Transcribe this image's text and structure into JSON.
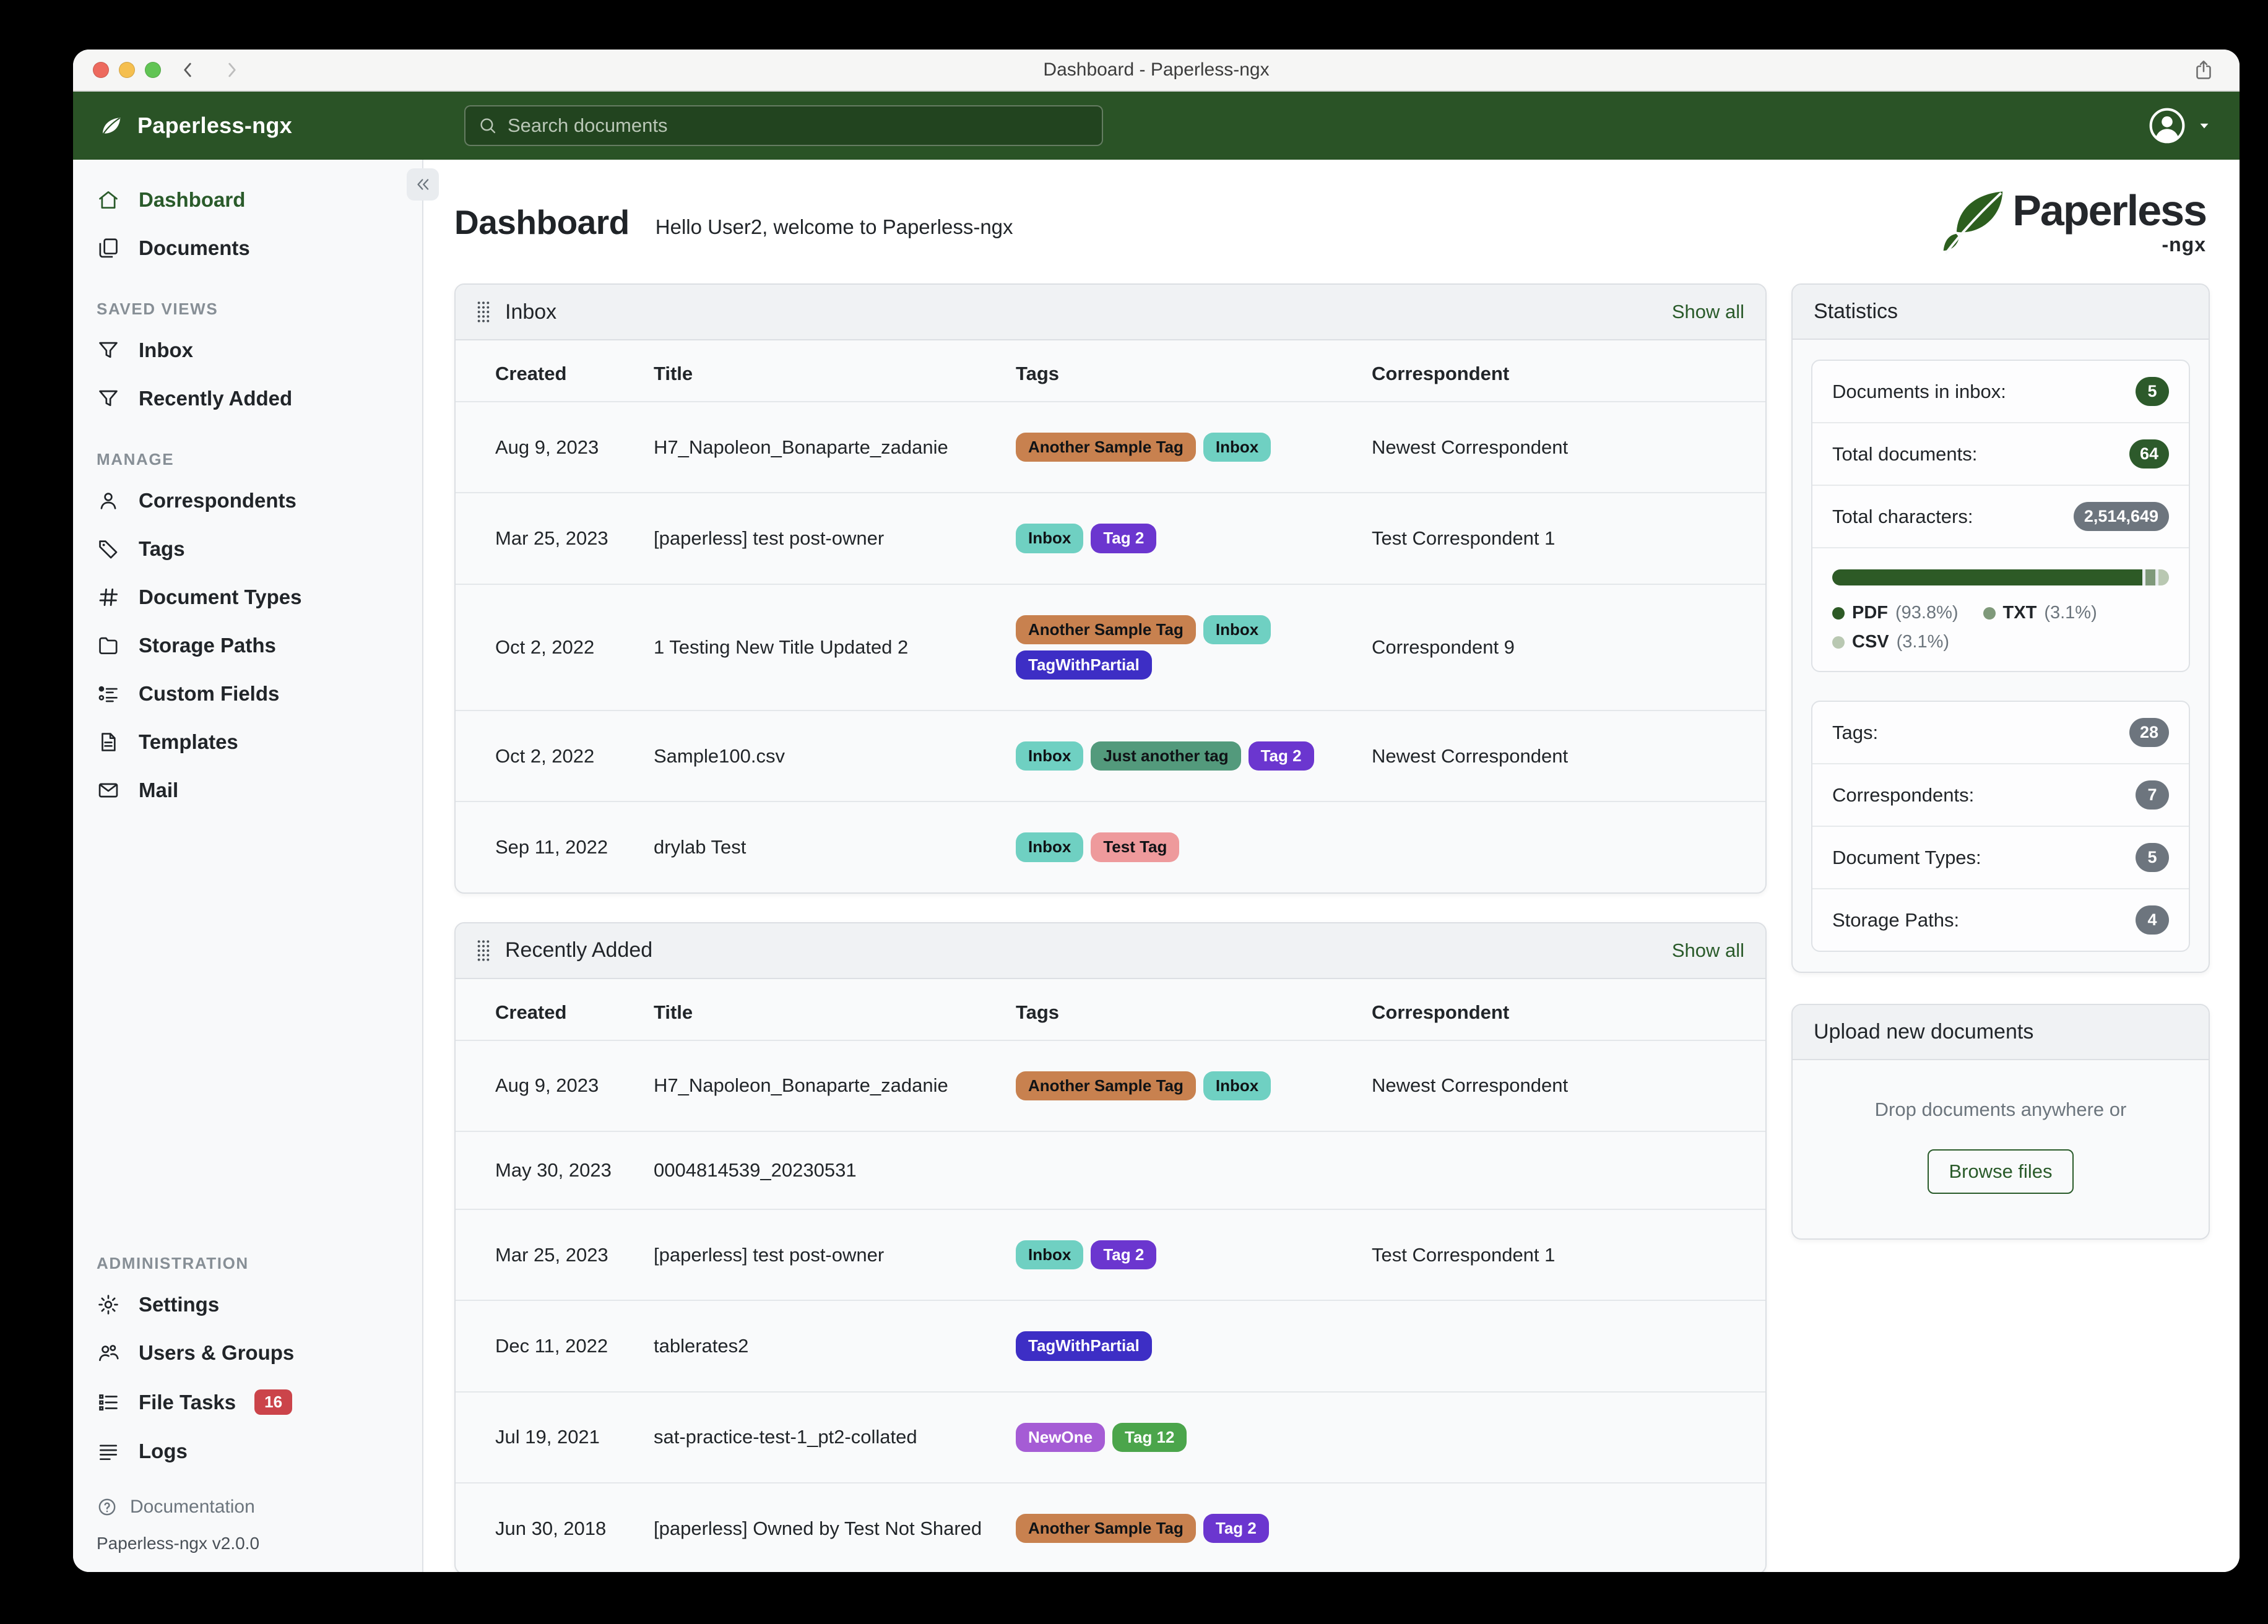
{
  "window": {
    "title": "Dashboard - Paperless-ngx"
  },
  "header": {
    "brand": "Paperless-ngx",
    "search_placeholder": "Search documents"
  },
  "logo": {
    "wordmark": "Paperless",
    "suffix": "-ngx"
  },
  "sidebar": {
    "sections": [
      {
        "label": "",
        "area": "top",
        "items": [
          {
            "icon": "home",
            "label": "Dashboard",
            "active": true
          },
          {
            "icon": "documents",
            "label": "Documents"
          }
        ]
      },
      {
        "label": "SAVED VIEWS",
        "area": "top",
        "items": [
          {
            "icon": "funnel",
            "label": "Inbox"
          },
          {
            "icon": "funnel",
            "label": "Recently Added"
          }
        ]
      },
      {
        "label": "MANAGE",
        "area": "top",
        "items": [
          {
            "icon": "person",
            "label": "Correspondents"
          },
          {
            "icon": "tag",
            "label": "Tags"
          },
          {
            "icon": "hash",
            "label": "Document Types"
          },
          {
            "icon": "folder",
            "label": "Storage Paths"
          },
          {
            "icon": "fields",
            "label": "Custom Fields"
          },
          {
            "icon": "file",
            "label": "Templates"
          },
          {
            "icon": "envelope",
            "label": "Mail"
          }
        ]
      },
      {
        "label": "ADMINISTRATION",
        "area": "bottom",
        "items": [
          {
            "icon": "gear",
            "label": "Settings"
          },
          {
            "icon": "users",
            "label": "Users & Groups"
          },
          {
            "icon": "tasks",
            "label": "File Tasks",
            "badge": "16"
          },
          {
            "icon": "logs",
            "label": "Logs"
          }
        ]
      }
    ],
    "footer": {
      "docs_label": "Documentation",
      "version": "Paperless-ngx v2.0.0"
    }
  },
  "main": {
    "title": "Dashboard",
    "subtitle": "Hello User2, welcome to Paperless-ngx"
  },
  "tag_colors": {
    "Inbox": {
      "bg": "#6fd0c2",
      "fg": "#101316"
    },
    "Another Sample Tag": {
      "bg": "#c8814f",
      "fg": "#101316"
    },
    "Tag 2": {
      "bg": "#6b36cf",
      "fg": "#ffffff"
    },
    "TagWithPartial": {
      "bg": "#3d2ec5",
      "fg": "#ffffff"
    },
    "Just another tag": {
      "bg": "#539a7c",
      "fg": "#101316"
    },
    "Test Tag": {
      "bg": "#ee9a9c",
      "fg": "#101316"
    },
    "NewOne": {
      "bg": "#a55cd5",
      "fg": "#ffffff"
    },
    "Tag 12": {
      "bg": "#4ba54b",
      "fg": "#ffffff"
    }
  },
  "cards": [
    {
      "id": "inbox",
      "title": "Inbox",
      "show_all_label": "Show all",
      "columns": [
        "Created",
        "Title",
        "Tags",
        "Correspondent"
      ],
      "rows": [
        {
          "created": "Aug 9, 2023",
          "title": "H7_Napoleon_Bonaparte_zadanie",
          "tags": [
            "Another Sample Tag",
            "Inbox"
          ],
          "correspondent": "Newest Correspondent"
        },
        {
          "created": "Mar 25, 2023",
          "title": "[paperless] test post-owner",
          "tags": [
            "Inbox",
            "Tag 2"
          ],
          "correspondent": "Test Correspondent 1"
        },
        {
          "created": "Oct 2, 2022",
          "title": "1 Testing New Title Updated 2",
          "tags": [
            "Another Sample Tag",
            "Inbox",
            "TagWithPartial"
          ],
          "correspondent": "Correspondent 9"
        },
        {
          "created": "Oct 2, 2022",
          "title": "Sample100.csv",
          "tags": [
            "Inbox",
            "Just another tag",
            "Tag 2"
          ],
          "correspondent": "Newest Correspondent"
        },
        {
          "created": "Sep 11, 2022",
          "title": "drylab Test",
          "tags": [
            "Inbox",
            "Test Tag"
          ],
          "correspondent": ""
        }
      ]
    },
    {
      "id": "recent",
      "title": "Recently Added",
      "show_all_label": "Show all",
      "columns": [
        "Created",
        "Title",
        "Tags",
        "Correspondent"
      ],
      "rows": [
        {
          "created": "Aug 9, 2023",
          "title": "H7_Napoleon_Bonaparte_zadanie",
          "tags": [
            "Another Sample Tag",
            "Inbox"
          ],
          "correspondent": "Newest Correspondent"
        },
        {
          "created": "May 30, 2023",
          "title": "0004814539_20230531",
          "tags": [],
          "correspondent": ""
        },
        {
          "created": "Mar 25, 2023",
          "title": "[paperless] test post-owner",
          "tags": [
            "Inbox",
            "Tag 2"
          ],
          "correspondent": "Test Correspondent 1"
        },
        {
          "created": "Dec 11, 2022",
          "title": "tablerates2",
          "tags": [
            "TagWithPartial"
          ],
          "correspondent": ""
        },
        {
          "created": "Jul 19, 2021",
          "title": "sat-practice-test-1_pt2-collated",
          "tags": [
            "NewOne",
            "Tag 12"
          ],
          "correspondent": ""
        },
        {
          "created": "Jun 30, 2018",
          "title": "[paperless] Owned by Test Not Shared",
          "tags": [
            "Another Sample Tag",
            "Tag 2"
          ],
          "correspondent": ""
        }
      ]
    }
  ],
  "statistics": {
    "title": "Statistics",
    "rows": [
      {
        "label": "Documents in inbox:",
        "value": "5",
        "variant": "green"
      },
      {
        "label": "Total documents:",
        "value": "64",
        "variant": "green"
      },
      {
        "label": "Total characters:",
        "value": "2,514,649",
        "variant": "gray"
      }
    ],
    "chart_data": {
      "type": "bar",
      "title": "Document file type distribution",
      "categories": [
        "PDF",
        "TXT",
        "CSV"
      ],
      "values": [
        93.8,
        3.1,
        3.1
      ],
      "unit": "%",
      "colors": [
        "#2d5a26",
        "#7f997a",
        "#b9c8b2"
      ]
    },
    "legend": [
      {
        "name": "PDF",
        "pct": "(93.8%)",
        "color": "#2d5a26"
      },
      {
        "name": "TXT",
        "pct": "(3.1%)",
        "color": "#7f997a"
      },
      {
        "name": "CSV",
        "pct": "(3.1%)",
        "color": "#b9c8b2"
      }
    ],
    "counts": [
      {
        "label": "Tags:",
        "value": "28"
      },
      {
        "label": "Correspondents:",
        "value": "7"
      },
      {
        "label": "Document Types:",
        "value": "5"
      },
      {
        "label": "Storage Paths:",
        "value": "4"
      }
    ]
  },
  "upload": {
    "title": "Upload new documents",
    "hint": "Drop documents anywhere or",
    "button_label": "Browse files"
  },
  "colors": {
    "brand_green": "#2a5326",
    "link_green": "#2a5b2a",
    "accent_green_dark": "#2d5a2b",
    "badge_gray": "#6d757e",
    "danger_badge": "#cb444a",
    "traffic_red": "#ed6a5e",
    "traffic_yellow": "#f5bf4f",
    "traffic_green": "#61c454"
  }
}
